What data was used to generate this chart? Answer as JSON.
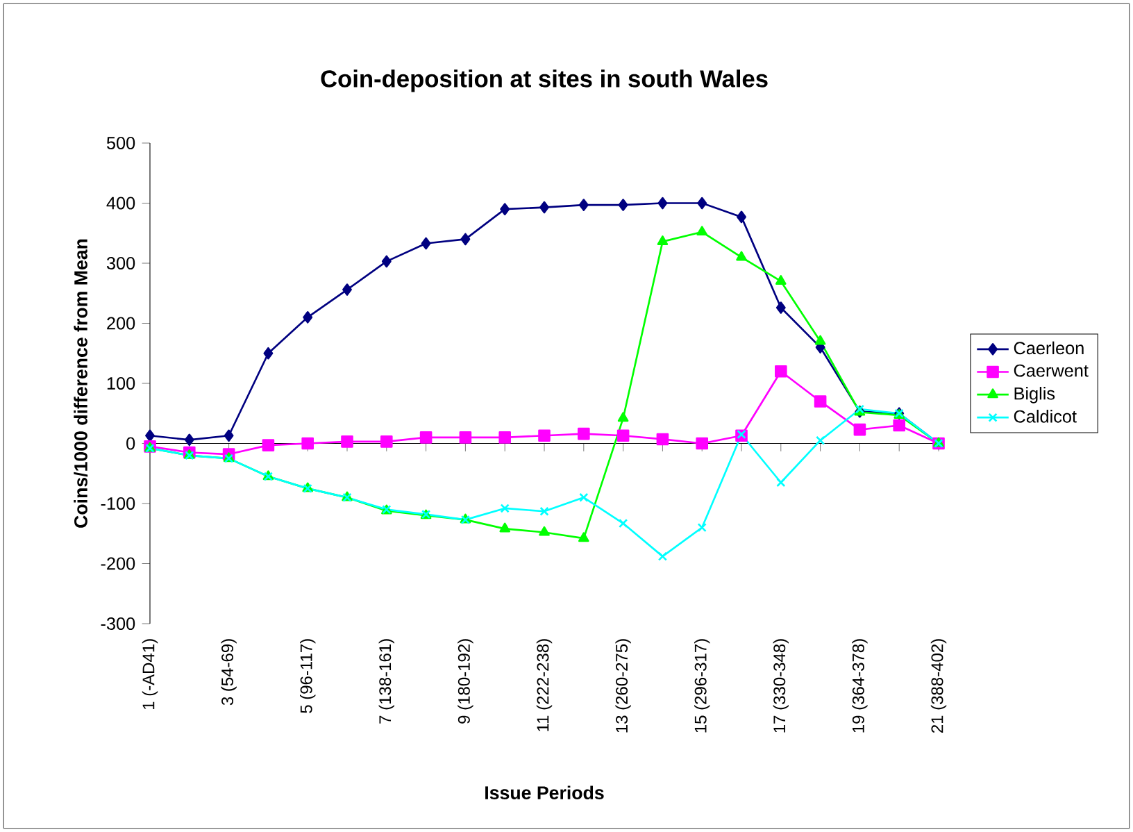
{
  "chart_data": {
    "type": "line",
    "title": "Coin-deposition at sites in south Wales",
    "xlabel": "Issue Periods",
    "ylabel": "Coins/1000 difference from Mean",
    "categories": [
      "1 (-AD41)",
      null,
      "3 (54-69)",
      null,
      "5 (96-117)",
      null,
      "7 (138-161)",
      null,
      "9 (180-192)",
      null,
      "11 (222-238)",
      null,
      "13 (260-275)",
      null,
      "15 (296-317)",
      null,
      "17 (330-348)",
      null,
      "19 (364-378)",
      null,
      "21 (388-402)"
    ],
    "ylim": [
      -300,
      500
    ],
    "yticks": [
      -300,
      -200,
      -100,
      0,
      100,
      200,
      300,
      400,
      500
    ],
    "legend": "right",
    "line_style": "solid",
    "series": [
      {
        "name": "Caerleon",
        "color": "#000080",
        "marker": "diamond",
        "values": [
          13,
          6,
          13,
          150,
          210,
          256,
          303,
          333,
          340,
          390,
          393,
          397,
          397,
          400,
          400,
          377,
          226,
          160,
          53,
          50,
          0
        ]
      },
      {
        "name": "Caerwent",
        "color": "#ff00ff",
        "marker": "square",
        "values": [
          -5,
          -15,
          -18,
          -3,
          0,
          3,
          3,
          10,
          10,
          10,
          13,
          16,
          13,
          7,
          0,
          13,
          120,
          70,
          23,
          30,
          0
        ]
      },
      {
        "name": "Biglis",
        "color": "#00ff00",
        "marker": "triangle",
        "values": [
          -8,
          -20,
          -25,
          -55,
          -75,
          -90,
          -112,
          -120,
          -127,
          -142,
          -148,
          -158,
          42,
          336,
          352,
          310,
          270,
          170,
          52,
          47,
          0
        ]
      },
      {
        "name": "Caldicot",
        "color": "#00ffff",
        "marker": "cross",
        "values": [
          -8,
          -20,
          -25,
          -55,
          -75,
          -90,
          -110,
          -118,
          -127,
          -108,
          -113,
          -90,
          -133,
          -188,
          -140,
          15,
          -65,
          5,
          57,
          50,
          0
        ]
      }
    ]
  }
}
